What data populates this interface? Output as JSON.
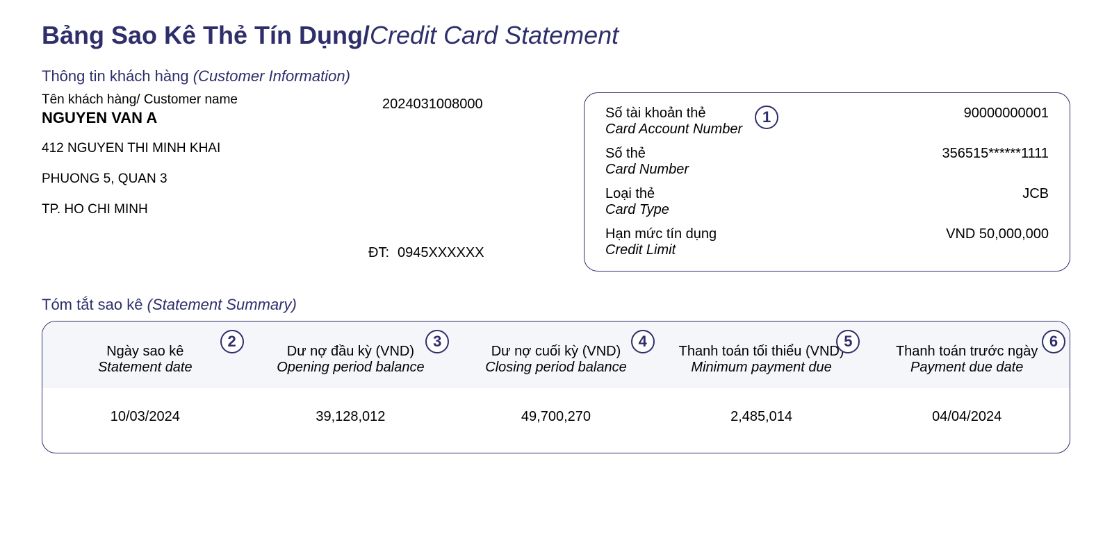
{
  "colors": {
    "primary": "#2e2e6b",
    "header_bg": "#f5f6fa",
    "text": "#000000",
    "page_bg": "#ffffff"
  },
  "title": {
    "vn": "Bảng Sao Kê Thẻ Tín Dụng",
    "en": "Credit Card Statement"
  },
  "customer_section": {
    "header_vn": "Thông tin khách hàng",
    "header_en": "(Customer Information)",
    "name_label": "Tên khách hàng/ Customer name",
    "name_value": "NGUYEN VAN A",
    "ref_number": "2024031008000",
    "address_line1": "412 NGUYEN THI MINH KHAI",
    "address_line2": "PHUONG 5, QUAN 3",
    "address_line3": "TP. HO CHI MINH",
    "phone_label": "ĐT:",
    "phone_value": "0945XXXXXX"
  },
  "card_box": {
    "badge": "1",
    "rows": [
      {
        "vn": "Số tài khoản thẻ",
        "en": "Card Account Number",
        "value": "90000000001"
      },
      {
        "vn": "Số thẻ",
        "en": "Card Number",
        "value": "356515******1111"
      },
      {
        "vn": "Loại thẻ",
        "en": "Card Type",
        "value": "JCB"
      },
      {
        "vn": "Hạn mức tín dụng",
        "en": "Credit Limit",
        "value": "VND 50,000,000"
      }
    ]
  },
  "summary_section": {
    "header_vn": "Tóm tắt sao kê",
    "header_en": "(Statement Summary)",
    "columns": [
      {
        "badge": "2",
        "vn": "Ngày sao kê",
        "en": "Statement date",
        "value": "10/03/2024"
      },
      {
        "badge": "3",
        "vn": "Dư nợ đầu kỳ (VND)",
        "en": "Opening period balance",
        "value": "39,128,012"
      },
      {
        "badge": "4",
        "vn": "Dư nợ cuối kỳ (VND)",
        "en": "Closing period balance",
        "value": "49,700,270"
      },
      {
        "badge": "5",
        "vn": "Thanh toán tối thiểu (VND)",
        "en": "Minimum payment due",
        "value": "2,485,014"
      },
      {
        "badge": "6",
        "vn": "Thanh toán trước ngày",
        "en": "Payment due date",
        "value": "04/04/2024"
      }
    ]
  }
}
